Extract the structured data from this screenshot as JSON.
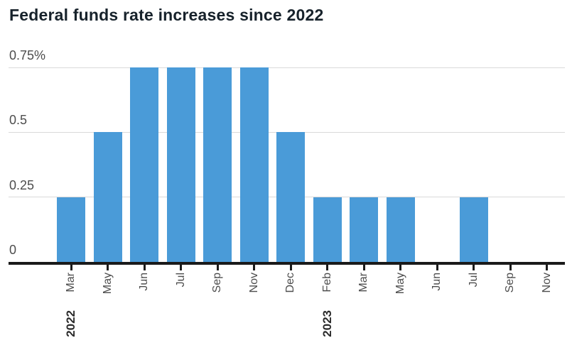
{
  "chart_data": {
    "type": "bar",
    "title": "Federal funds rate increases since 2022",
    "x": [
      "Mar",
      "May",
      "Jun",
      "Jul",
      "Sep",
      "Nov",
      "Dec",
      "Feb",
      "Mar",
      "May",
      "Jun",
      "Jul",
      "Sep",
      "Nov"
    ],
    "values": [
      0.25,
      0.5,
      0.75,
      0.75,
      0.75,
      0.75,
      0.5,
      0.25,
      0.25,
      0.25,
      0,
      0.25,
      0,
      0
    ],
    "year_markers": [
      {
        "index": 0,
        "label": "2022"
      },
      {
        "index": 7,
        "label": "2023"
      }
    ],
    "yticks": [
      {
        "value": 0,
        "label": "0"
      },
      {
        "value": 0.25,
        "label": "0.25"
      },
      {
        "value": 0.5,
        "label": "0.5"
      },
      {
        "value": 0.75,
        "label": "0.75%"
      }
    ],
    "ylim": [
      0,
      0.75
    ],
    "xlabel": "",
    "ylabel": "",
    "grid": true,
    "legend": "none",
    "bar_color": "#4a9bd8",
    "colors": {
      "grid": "#d9d9d9",
      "axis": "#1a1a1a",
      "title": "#17222b",
      "axis_label": "#4d4d4d",
      "year_label": "#2b2b2b"
    }
  }
}
